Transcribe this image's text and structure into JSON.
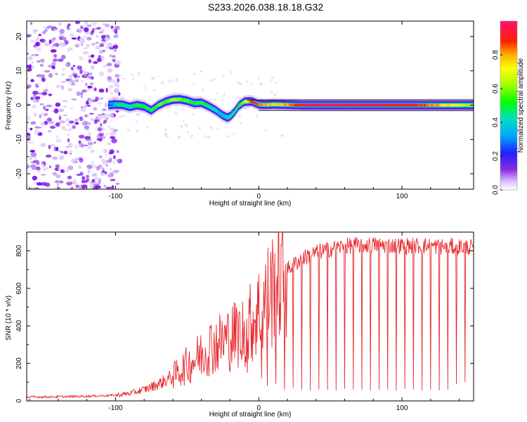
{
  "title": "S233.2026.038.18.18.G32",
  "chart_data": [
    {
      "type": "heatmap",
      "panel": "spectrogram",
      "xlabel": "Height of straight line (km)",
      "ylabel": "Frequency (Hz)",
      "xlim": [
        -162,
        150
      ],
      "ylim": [
        -24.5,
        24.5
      ],
      "x_ticks": [
        -100,
        0,
        100
      ],
      "y_ticks": [
        -20,
        -10,
        0,
        10,
        20
      ],
      "colorbar": {
        "label": "Normalized spectral amplitude",
        "range": [
          0.0,
          1.0
        ],
        "ticks": [
          0.0,
          0.2,
          0.4,
          0.6,
          0.8
        ],
        "tick_labels": [
          "0.0",
          "0.2",
          "0.4",
          "0.6",
          "0.8"
        ]
      },
      "noise_region": {
        "x_start": -162,
        "x_end": -103,
        "description_only": true
      },
      "ridge": {
        "x": [
          -105,
          -100,
          -95,
          -90,
          -85,
          -80,
          -75,
          -70,
          -65,
          -60,
          -55,
          -50,
          -45,
          -40,
          -35,
          -30,
          -25,
          -22,
          -20,
          -17,
          -14,
          -10,
          -5,
          0,
          5,
          10,
          20,
          30,
          50,
          80,
          110,
          150
        ],
        "y": [
          0,
          0.2,
          0.1,
          -0.5,
          0,
          -0.4,
          -1.5,
          0,
          1,
          1.6,
          1.7,
          1.3,
          0.6,
          0.7,
          -0.3,
          -1.5,
          -3,
          -3.6,
          -3.3,
          -2,
          -0.2,
          1,
          1.1,
          0.2,
          0.1,
          0.2,
          0.1,
          0,
          0,
          0,
          0,
          0
        ],
        "amplitude": [
          0.2,
          0.4,
          0.5,
          0.4,
          0.55,
          0.5,
          0.5,
          0.6,
          0.55,
          0.65,
          0.6,
          0.55,
          0.5,
          0.55,
          0.45,
          0.4,
          0.35,
          0.4,
          0.45,
          0.4,
          0.5,
          0.65,
          0.9,
          0.85,
          0.8,
          0.75,
          0.8,
          0.95,
          0.95,
          0.95,
          0.9,
          0.6
        ]
      }
    },
    {
      "type": "line",
      "panel": "snr",
      "xlabel": "Height of straight line (km)",
      "ylabel": "SNR (10 * v/v)",
      "xlim": [
        -162,
        150
      ],
      "ylim": [
        0,
        900
      ],
      "x_ticks": [
        -100,
        0,
        100
      ],
      "y_ticks": [
        0,
        200,
        400,
        600,
        800
      ],
      "series": [
        {
          "name": "SNR",
          "color": "#e8282d",
          "x": [
            -162,
            -140,
            -120,
            -100,
            -90,
            -80,
            -70,
            -60,
            -50,
            -45,
            -40,
            -35,
            -30,
            -25,
            -20,
            -15,
            -10,
            -5,
            0,
            5,
            10,
            15,
            20,
            25,
            30,
            40,
            50,
            60,
            70,
            80,
            90,
            100,
            110,
            120,
            130,
            140,
            150
          ],
          "y": [
            20,
            22,
            25,
            30,
            40,
            60,
            90,
            130,
            190,
            220,
            250,
            290,
            300,
            320,
            340,
            360,
            380,
            420,
            480,
            540,
            600,
            650,
            700,
            730,
            760,
            790,
            810,
            825,
            830,
            832,
            830,
            828,
            826,
            825,
            823,
            822,
            820
          ],
          "dropouts": {
            "x": [
              -12,
              -8,
              2,
              6,
              12,
              18,
              24,
              30,
              36,
              42,
              48,
              54,
              60,
              66,
              72,
              78,
              84,
              90,
              96,
              102,
              108,
              114,
              120,
              126,
              132,
              138,
              144
            ],
            "y": [
              220,
              150,
              120,
              80,
              90,
              60,
              70,
              60,
              55,
              60,
              60,
              55,
              65,
              60,
              60,
              55,
              60,
              60,
              55,
              65,
              60,
              55,
              60,
              55,
              60,
              90,
              100
            ]
          }
        }
      ]
    }
  ]
}
